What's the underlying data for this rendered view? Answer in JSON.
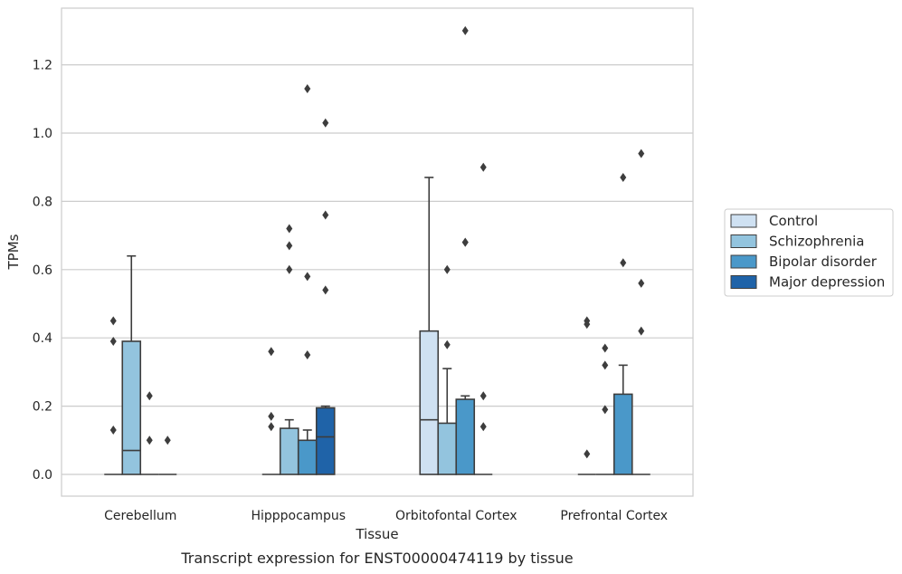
{
  "chart_data": {
    "type": "box",
    "caption": "Transcript expression for ENST00000474119 by tissue",
    "xlabel": "Tissue",
    "ylabel": "TPMs",
    "ylim": [
      -0.065,
      1.37
    ],
    "yticks": [
      "0.0",
      "0.2",
      "0.4",
      "0.6",
      "0.8",
      "1.0",
      "1.2"
    ],
    "grid": true,
    "legend_position": "right",
    "categories": [
      "Cerebellum",
      "Hipppocampus",
      "Orbitofontal Cortex",
      "Prefrontal Cortex"
    ],
    "series": [
      {
        "name": "Control",
        "color": "#cfe1f2",
        "boxes": [
          {
            "whislo": 0,
            "q1": 0,
            "med": 0,
            "q3": 0,
            "whishi": 0,
            "fliers": [
              0.45,
              0.39,
              0.13
            ]
          },
          {
            "whislo": 0,
            "q1": 0,
            "med": 0,
            "q3": 0,
            "whishi": 0,
            "fliers": [
              0.36,
              0.17,
              0.14
            ]
          },
          {
            "whislo": 0,
            "q1": 0,
            "med": 0.16,
            "q3": 0.42,
            "whishi": 0.87,
            "fliers": []
          },
          {
            "whislo": 0,
            "q1": 0,
            "med": 0,
            "q3": 0,
            "whishi": 0,
            "fliers": [
              0.45,
              0.44,
              0.06
            ]
          }
        ]
      },
      {
        "name": "Schizophrenia",
        "color": "#93c4de",
        "boxes": [
          {
            "whislo": 0,
            "q1": 0,
            "med": 0.07,
            "q3": 0.39,
            "whishi": 0.64,
            "fliers": []
          },
          {
            "whislo": 0,
            "q1": 0,
            "med": 0,
            "q3": 0.135,
            "whishi": 0.16,
            "fliers": [
              0.72,
              0.67,
              0.6
            ]
          },
          {
            "whislo": 0,
            "q1": 0,
            "med": 0,
            "q3": 0.15,
            "whishi": 0.31,
            "fliers": [
              0.6,
              0.38
            ]
          },
          {
            "whislo": 0,
            "q1": 0,
            "med": 0,
            "q3": 0,
            "whishi": 0,
            "fliers": [
              0.37,
              0.32,
              0.19
            ]
          }
        ]
      },
      {
        "name": "Bipolar disorder",
        "color": "#4a98c9",
        "boxes": [
          {
            "whislo": 0,
            "q1": 0,
            "med": 0,
            "q3": 0,
            "whishi": 0,
            "fliers": [
              0.23,
              0.1
            ]
          },
          {
            "whislo": 0,
            "q1": 0,
            "med": 0,
            "q3": 0.1,
            "whishi": 0.13,
            "fliers": [
              1.13,
              0.58,
              0.35
            ]
          },
          {
            "whislo": 0,
            "q1": 0,
            "med": 0,
            "q3": 0.22,
            "whishi": 0.23,
            "fliers": [
              1.3,
              0.68,
              0.68
            ]
          },
          {
            "whislo": 0,
            "q1": 0,
            "med": 0,
            "q3": 0.235,
            "whishi": 0.32,
            "fliers": [
              0.87,
              0.62
            ]
          }
        ]
      },
      {
        "name": "Major depression",
        "color": "#1f63a8",
        "boxes": [
          {
            "whislo": 0,
            "q1": 0,
            "med": 0,
            "q3": 0,
            "whishi": 0,
            "fliers": [
              0.1
            ]
          },
          {
            "whislo": 0,
            "q1": 0,
            "med": 0.11,
            "q3": 0.195,
            "whishi": 0.2,
            "fliers": [
              1.03,
              0.76,
              0.54
            ]
          },
          {
            "whislo": 0,
            "q1": 0,
            "med": 0,
            "q3": 0,
            "whishi": 0,
            "fliers": [
              0.9,
              0.23,
              0.14
            ]
          },
          {
            "whislo": 0,
            "q1": 0,
            "med": 0,
            "q3": 0,
            "whishi": 0,
            "fliers": [
              0.94,
              0.56,
              0.42
            ]
          }
        ]
      }
    ]
  }
}
